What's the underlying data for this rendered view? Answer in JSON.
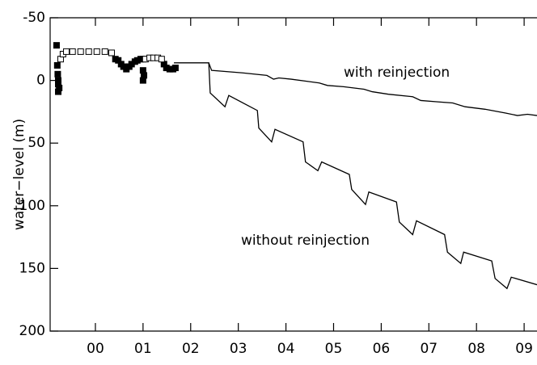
{
  "chart_data": {
    "type": "line",
    "y_label": "water−level (m)",
    "xlim": [
      -0.95,
      9.27
    ],
    "xticks": [
      {
        "value": 0,
        "label": "00"
      },
      {
        "value": 1,
        "label": "01"
      },
      {
        "value": 2,
        "label": "02"
      },
      {
        "value": 3,
        "label": "03"
      },
      {
        "value": 4,
        "label": "04"
      },
      {
        "value": 5,
        "label": "05"
      },
      {
        "value": 6,
        "label": "06"
      },
      {
        "value": 7,
        "label": "07"
      },
      {
        "value": 8,
        "label": "08"
      },
      {
        "value": 9,
        "label": "09"
      }
    ],
    "ylim": [
      -50,
      200
    ],
    "y_inverted": true,
    "yticks": [
      -50,
      0,
      50,
      100,
      150,
      200
    ],
    "series": [
      {
        "name": "with reinjection",
        "color": "#000000",
        "style": "line",
        "x": [
          1.65,
          2.38,
          2.44,
          3.09,
          3.6,
          3.74,
          3.85,
          4.11,
          4.7,
          4.87,
          5.21,
          5.64,
          5.81,
          6.15,
          6.66,
          6.83,
          7.16,
          7.5,
          7.76,
          8.18,
          8.61,
          8.86,
          9.07,
          9.27
        ],
        "values": [
          -14,
          -14,
          -8,
          -6,
          -4,
          -1,
          -2,
          -1,
          2,
          4,
          5,
          7,
          9,
          11,
          13,
          16,
          17,
          18,
          21,
          23,
          26,
          28,
          27,
          28
        ]
      },
      {
        "name": "without reinjection",
        "color": "#000000",
        "style": "line",
        "x": [
          1.65,
          2.38,
          2.41,
          2.72,
          2.8,
          3.4,
          3.43,
          3.7,
          3.77,
          4.36,
          4.41,
          4.67,
          4.75,
          5.33,
          5.38,
          5.67,
          5.74,
          6.32,
          6.38,
          6.66,
          6.74,
          7.33,
          7.39,
          7.67,
          7.73,
          8.32,
          8.39,
          8.64,
          8.73,
          9.27
        ],
        "values": [
          -14,
          -14,
          10,
          21,
          12,
          24,
          38,
          49,
          39,
          49,
          65,
          72,
          65,
          75,
          87,
          99,
          89,
          97,
          113,
          123,
          112,
          123,
          137,
          146,
          137,
          144,
          158,
          166,
          157,
          163
        ]
      },
      {
        "color": "#000000",
        "style": "filled",
        "x": [
          -0.815,
          -0.8,
          -0.79,
          -0.78,
          -0.78,
          -0.76,
          -0.78,
          0.42,
          0.48,
          0.54,
          0.59,
          0.65,
          0.71,
          0.76,
          0.83,
          0.88,
          0.95,
          1.0,
          1.0,
          1.0,
          1.02,
          1.44,
          1.49,
          1.56,
          1.63,
          1.68
        ],
        "values": [
          -28,
          -12,
          -5,
          0,
          3,
          6,
          9,
          -17,
          -16,
          -13,
          -11,
          -9,
          -11,
          -13,
          -15,
          -16,
          -17,
          -17,
          -8,
          0,
          -4,
          -13,
          -10,
          -9,
          -9,
          -10
        ]
      },
      {
        "color": "#000000",
        "style": "open",
        "x": [
          -0.73,
          -0.68,
          -0.61,
          -0.48,
          -0.31,
          -0.14,
          0.03,
          0.2,
          0.34,
          1.05,
          1.14,
          1.22,
          1.31,
          1.39
        ],
        "values": [
          -17,
          -21,
          -23,
          -23,
          -23,
          -23,
          -23,
          -23,
          -22,
          -17,
          -18,
          -18,
          -18,
          -17
        ]
      }
    ]
  }
}
